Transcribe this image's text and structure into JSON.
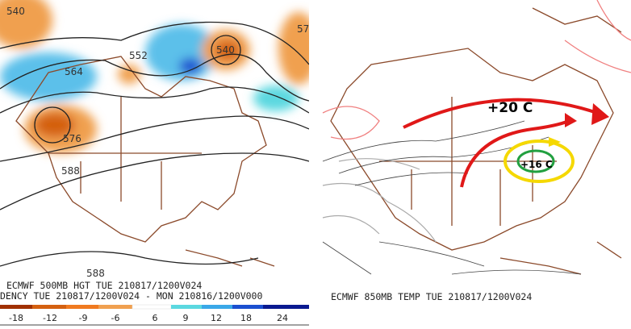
{
  "left_panel": {
    "contour_labels": [
      "540",
      "552",
      "564",
      "576",
      "588",
      "540",
      "57",
      "588"
    ],
    "caption_lines": [
      "ECMWF 500MB HGT TUE 210817/1200V024",
      "DENCY TUE 210817/1200V024 - MON 210816/1200V000"
    ],
    "colorbar_labels": [
      -18,
      -12,
      -9,
      -6,
      6,
      9,
      12,
      18,
      24
    ]
  },
  "right_panel": {
    "annotations": [
      "+20 C",
      "+16 C"
    ],
    "caption": "ECMWF 850MB TEMP TUE 210817/1200V024"
  }
}
